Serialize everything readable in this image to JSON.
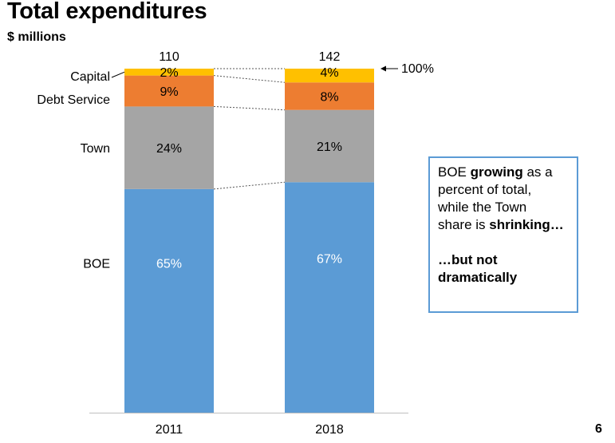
{
  "title": "Total expenditures",
  "subtitle": "$ millions",
  "page_number": "6",
  "callout": {
    "line1_pre": "BOE ",
    "line1_bold": "growing",
    "line1_post": " as a",
    "line2": "percent of total,",
    "line3": "while the Town",
    "line4_pre": "share is ",
    "line4_bold": "shrinking…",
    "line5": "…but not",
    "line6": "dramatically"
  },
  "colors": {
    "BOE": "#5b9bd5",
    "Town": "#a5a5a5",
    "Debt Service": "#ed7d31",
    "Capital": "#ffc000",
    "callout_border": "#5b9bd5"
  },
  "chart_data": {
    "type": "bar",
    "stacked": true,
    "normalized": true,
    "categories": [
      "2011",
      "2018"
    ],
    "totals": [
      110,
      142
    ],
    "total_label": "100%",
    "series": [
      {
        "name": "BOE",
        "values": [
          65,
          67
        ],
        "labels": [
          "65%",
          "67%"
        ]
      },
      {
        "name": "Town",
        "values": [
          24,
          21
        ],
        "labels": [
          "24%",
          "21%"
        ]
      },
      {
        "name": "Debt Service",
        "values": [
          9,
          8
        ],
        "labels": [
          "9%",
          "8%"
        ]
      },
      {
        "name": "Capital",
        "values": [
          2,
          4
        ],
        "labels": [
          "2%",
          "4%"
        ]
      }
    ],
    "ylim": [
      0,
      100
    ],
    "grid": false,
    "legend": "left"
  }
}
